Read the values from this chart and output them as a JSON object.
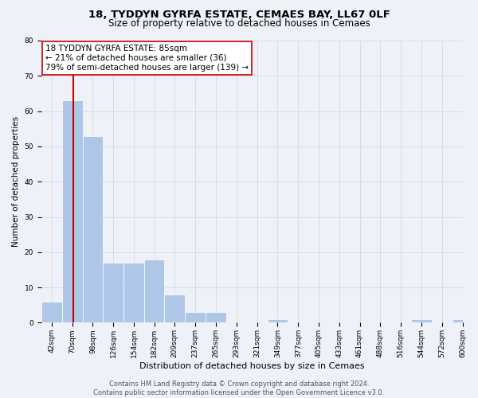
{
  "title1": "18, TYDDYN GYRFA ESTATE, CEMAES BAY, LL67 0LF",
  "title2": "Size of property relative to detached houses in Cemaes",
  "xlabel": "Distribution of detached houses by size in Cemaes",
  "ylabel": "Number of detached properties",
  "bar_values": [
    6,
    63,
    53,
    17,
    17,
    18,
    8,
    3,
    3,
    0,
    0,
    1,
    0,
    0,
    0,
    0,
    0,
    0,
    1,
    0,
    1
  ],
  "bin_labels": [
    "42sqm",
    "70sqm",
    "98sqm",
    "126sqm",
    "154sqm",
    "182sqm",
    "209sqm",
    "237sqm",
    "265sqm",
    "293sqm",
    "321sqm",
    "349sqm",
    "377sqm",
    "405sqm",
    "433sqm",
    "461sqm",
    "488sqm",
    "516sqm",
    "544sqm",
    "572sqm",
    "600sqm"
  ],
  "bin_edges": [
    42,
    70,
    98,
    126,
    154,
    182,
    209,
    237,
    265,
    293,
    321,
    349,
    377,
    405,
    433,
    461,
    488,
    516,
    544,
    572,
    600
  ],
  "bar_color": "#aec6e8",
  "bar_edge_color": "#ffffff",
  "property_line_x": 85,
  "property_line_color": "#cc0000",
  "annotation_text": "18 TYDDYN GYRFA ESTATE: 85sqm\n← 21% of detached houses are smaller (36)\n79% of semi-detached houses are larger (139) →",
  "annotation_box_color": "#ffffff",
  "annotation_box_edge_color": "#cc0000",
  "ylim": [
    0,
    80
  ],
  "yticks": [
    0,
    10,
    20,
    30,
    40,
    50,
    60,
    70,
    80
  ],
  "grid_color": "#d0d8e8",
  "background_color": "#eef2f8",
  "footer_text": "Contains HM Land Registry data © Crown copyright and database right 2024.\nContains public sector information licensed under the Open Government Licence v3.0.",
  "title1_fontsize": 9.5,
  "title2_fontsize": 8.5,
  "xlabel_fontsize": 8,
  "ylabel_fontsize": 7.5,
  "tick_fontsize": 6.5,
  "annotation_fontsize": 7.5,
  "footer_fontsize": 6
}
